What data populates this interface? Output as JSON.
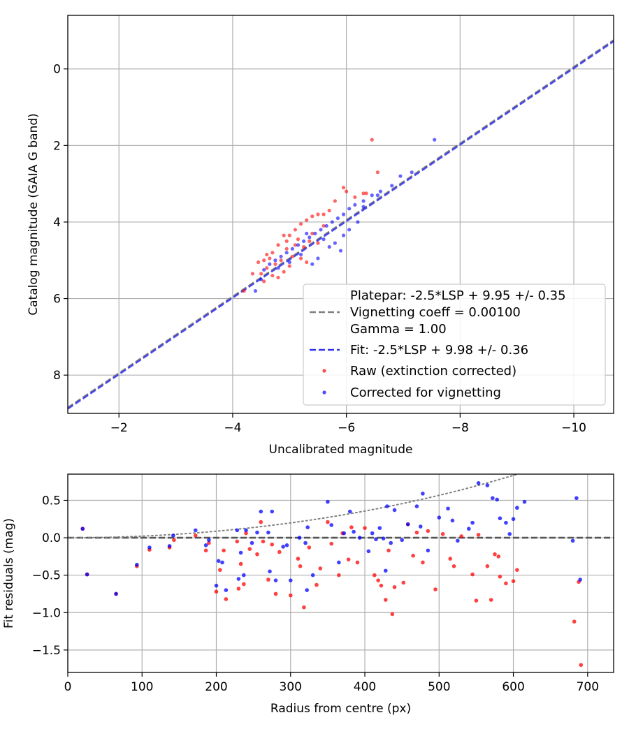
{
  "chart_data": [
    {
      "type": "scatter",
      "title": "",
      "xlabel": "Uncalibrated magnitude",
      "ylabel": "Catalog magnitude (GAIA G band)",
      "xlim": [
        -1.1,
        -10.7
      ],
      "ylim": [
        9.0,
        -1.4
      ],
      "x_inverted": true,
      "y_inverted": true,
      "grid": true,
      "xticks": [
        -2,
        -4,
        -6,
        -8,
        -10
      ],
      "xtick_labels": [
        "−2",
        "−4",
        "−6",
        "−8",
        "−10"
      ],
      "yticks": [
        0,
        2,
        4,
        6,
        8
      ],
      "ytick_labels": [
        "0",
        "2",
        "4",
        "6",
        "8"
      ],
      "legend_position": "lower-right",
      "legend": [
        {
          "label": "Platepar: -2.5*LSP + 9.95 +/- 0.35",
          "style": "none"
        },
        {
          "label": "Vignetting coeff = 0.00100",
          "style": "dash",
          "color": "#808080"
        },
        {
          "label": "Gamma = 1.00",
          "style": "none"
        },
        {
          "label": "Fit: -2.5*LSP + 9.98 +/- 0.36",
          "style": "dash",
          "color": "#3333ee"
        },
        {
          "label": "Raw (extinction corrected)",
          "style": "dot",
          "color": "#ff0000"
        },
        {
          "label": "Corrected for vignetting",
          "style": "dot",
          "color": "#0000ff"
        }
      ],
      "lines": [
        {
          "name": "Platepar",
          "color": "#808080",
          "style": "dash",
          "slope": 1.0,
          "intercept": 9.95
        },
        {
          "name": "Fit",
          "color": "#3333ee",
          "style": "dash",
          "slope": 1.0,
          "intercept": 9.98
        }
      ],
      "series": [
        {
          "name": "Raw (extinction corrected)",
          "color": "#ff0000",
          "points": [
            [
              -6.45,
              1.85
            ],
            [
              -6.55,
              2.7
            ],
            [
              -6.35,
              3.25
            ],
            [
              -6.3,
              3.25
            ],
            [
              -6.15,
              3.35
            ],
            [
              -5.95,
              3.1
            ],
            [
              -6.0,
              3.2
            ],
            [
              -5.8,
              3.45
            ],
            [
              -5.7,
              3.7
            ],
            [
              -5.6,
              3.8
            ],
            [
              -5.5,
              3.8
            ],
            [
              -5.4,
              3.85
            ],
            [
              -5.3,
              3.95
            ],
            [
              -5.2,
              4.05
            ],
            [
              -5.1,
              4.2
            ],
            [
              -5.0,
              4.35
            ],
            [
              -4.9,
              4.35
            ],
            [
              -5.15,
              4.45
            ],
            [
              -5.35,
              4.5
            ],
            [
              -5.5,
              4.55
            ],
            [
              -4.8,
              4.6
            ],
            [
              -4.95,
              4.7
            ],
            [
              -5.25,
              4.65
            ],
            [
              -4.7,
              4.8
            ],
            [
              -4.6,
              4.85
            ],
            [
              -5.05,
              4.9
            ],
            [
              -5.2,
              4.95
            ],
            [
              -4.85,
              5.0
            ],
            [
              -4.55,
              5.0
            ],
            [
              -4.45,
              5.05
            ],
            [
              -4.75,
              5.1
            ],
            [
              -5.0,
              5.15
            ],
            [
              -4.6,
              5.2
            ],
            [
              -4.9,
              5.3
            ],
            [
              -4.5,
              5.35
            ],
            [
              -4.7,
              5.4
            ],
            [
              -4.8,
              5.45
            ],
            [
              -4.35,
              5.35
            ],
            [
              -4.55,
              5.55
            ],
            [
              -4.2,
              5.8
            ],
            [
              -5.6,
              4.1
            ],
            [
              -5.4,
              4.3
            ],
            [
              -5.1,
              4.6
            ],
            [
              -4.95,
              4.5
            ],
            [
              -5.3,
              5.05
            ],
            [
              -4.65,
              4.95
            ]
          ]
        },
        {
          "name": "Corrected for vignetting",
          "color": "#0000ff",
          "points": [
            [
              -7.55,
              1.85
            ],
            [
              -7.15,
              2.7
            ],
            [
              -6.95,
              2.8
            ],
            [
              -6.8,
              3.05
            ],
            [
              -6.6,
              3.2
            ],
            [
              -6.45,
              3.3
            ],
            [
              -6.3,
              3.45
            ],
            [
              -6.15,
              3.55
            ],
            [
              -6.05,
              3.65
            ],
            [
              -5.95,
              3.8
            ],
            [
              -5.85,
              3.9
            ],
            [
              -5.75,
              4.0
            ],
            [
              -5.65,
              4.1
            ],
            [
              -5.55,
              4.2
            ],
            [
              -5.45,
              4.3
            ],
            [
              -5.35,
              4.4
            ],
            [
              -5.25,
              4.5
            ],
            [
              -5.15,
              4.6
            ],
            [
              -5.05,
              4.7
            ],
            [
              -4.95,
              4.8
            ],
            [
              -4.85,
              4.9
            ],
            [
              -4.75,
              5.0
            ],
            [
              -4.65,
              5.1
            ],
            [
              -4.55,
              5.25
            ],
            [
              -4.5,
              5.5
            ],
            [
              -4.4,
              5.8
            ],
            [
              -5.6,
              4.45
            ],
            [
              -5.8,
              4.55
            ],
            [
              -5.9,
              4.75
            ],
            [
              -5.5,
              4.95
            ],
            [
              -5.4,
              5.1
            ],
            [
              -5.2,
              4.85
            ],
            [
              -5.0,
              5.05
            ],
            [
              -4.8,
              5.2
            ],
            [
              -6.05,
              4.2
            ],
            [
              -6.2,
              4.0
            ],
            [
              -5.7,
              4.65
            ],
            [
              -5.3,
              4.3
            ],
            [
              -5.95,
              4.35
            ],
            [
              -6.3,
              3.6
            ],
            [
              -6.55,
              3.3
            ]
          ]
        }
      ]
    },
    {
      "type": "scatter",
      "title": "",
      "xlabel": "Radius from centre (px)",
      "ylabel": "Fit residuals (mag)",
      "xlim": [
        0,
        735
      ],
      "ylim": [
        -1.8,
        0.85
      ],
      "grid": true,
      "xticks": [
        0,
        100,
        200,
        300,
        400,
        500,
        600,
        700
      ],
      "xtick_labels": [
        "0",
        "100",
        "200",
        "300",
        "400",
        "500",
        "600",
        "700"
      ],
      "yticks": [
        0.5,
        0.0,
        -0.5,
        -1.0,
        -1.5
      ],
      "ytick_labels": [
        "0.5",
        "0.0",
        "−0.5",
        "−1.0",
        "−1.5"
      ],
      "lines": [
        {
          "name": "zero",
          "color": "#555555",
          "style": "dash",
          "x": [
            0,
            735
          ],
          "y": [
            0,
            0
          ]
        },
        {
          "name": "vignetting model",
          "color": "#808080",
          "style": "dot",
          "coeff": 0.001,
          "form": "-2.5*log10(cos^4(coeff*r))"
        }
      ],
      "series": [
        {
          "name": "Raw (extinction corrected)",
          "color": "#ff0000",
          "points": [
            [
              20,
              0.12
            ],
            [
              26,
              -0.49
            ],
            [
              65,
              -0.75
            ],
            [
              93,
              -0.38
            ],
            [
              110,
              -0.16
            ],
            [
              137,
              -0.13
            ],
            [
              143,
              -0.03
            ],
            [
              172,
              0.03
            ],
            [
              186,
              -0.17
            ],
            [
              190,
              -0.07
            ],
            [
              200,
              -0.72
            ],
            [
              205,
              -0.43
            ],
            [
              210,
              -0.17
            ],
            [
              213,
              -0.82
            ],
            [
              228,
              -0.05
            ],
            [
              230,
              -0.68
            ],
            [
              233,
              -0.35
            ],
            [
              237,
              -0.62
            ],
            [
              240,
              0.06
            ],
            [
              245,
              -0.15
            ],
            [
              255,
              -0.22
            ],
            [
              260,
              0.21
            ],
            [
              263,
              -0.05
            ],
            [
              270,
              -0.56
            ],
            [
              275,
              -0.09
            ],
            [
              280,
              -0.75
            ],
            [
              285,
              -0.19
            ],
            [
              300,
              -0.77
            ],
            [
              310,
              -0.28
            ],
            [
              313,
              -0.38
            ],
            [
              318,
              -0.93
            ],
            [
              325,
              -0.13
            ],
            [
              335,
              -0.63
            ],
            [
              340,
              -0.41
            ],
            [
              350,
              0.21
            ],
            [
              355,
              -0.08
            ],
            [
              365,
              -0.5
            ],
            [
              370,
              0.06
            ],
            [
              378,
              -0.29
            ],
            [
              382,
              0.14
            ],
            [
              390,
              -0.33
            ],
            [
              400,
              0.13
            ],
            [
              413,
              -0.5
            ],
            [
              418,
              -0.57
            ],
            [
              422,
              -0.64
            ],
            [
              428,
              -0.83
            ],
            [
              432,
              -0.17
            ],
            [
              437,
              -1.02
            ],
            [
              440,
              -0.66
            ],
            [
              452,
              -0.6
            ],
            [
              458,
              0.18
            ],
            [
              465,
              -0.24
            ],
            [
              470,
              0.07
            ],
            [
              478,
              -0.33
            ],
            [
              485,
              0.09
            ],
            [
              495,
              -0.69
            ],
            [
              505,
              0.05
            ],
            [
              515,
              -0.28
            ],
            [
              520,
              -0.38
            ],
            [
              530,
              0.02
            ],
            [
              545,
              -0.49
            ],
            [
              550,
              -0.84
            ],
            [
              553,
              0.04
            ],
            [
              565,
              -0.38
            ],
            [
              570,
              -0.83
            ],
            [
              575,
              -0.22
            ],
            [
              580,
              -0.25
            ],
            [
              582,
              -0.52
            ],
            [
              590,
              -0.61
            ],
            [
              600,
              -0.58
            ],
            [
              605,
              -0.43
            ],
            [
              682,
              -1.12
            ],
            [
              688,
              -0.59
            ],
            [
              691,
              -1.7
            ]
          ]
        },
        {
          "name": "Corrected for vignetting",
          "color": "#0000ff",
          "points": [
            [
              20,
              0.12
            ],
            [
              26,
              -0.49
            ],
            [
              65,
              -0.75
            ],
            [
              93,
              -0.36
            ],
            [
              110,
              -0.13
            ],
            [
              137,
              -0.11
            ],
            [
              142,
              0.03
            ],
            [
              172,
              0.1
            ],
            [
              186,
              -0.1
            ],
            [
              190,
              -0.03
            ],
            [
              200,
              -0.64
            ],
            [
              203,
              -0.31
            ],
            [
              208,
              -0.33
            ],
            [
              213,
              -0.7
            ],
            [
              228,
              0.1
            ],
            [
              230,
              -0.55
            ],
            [
              233,
              -0.2
            ],
            [
              237,
              -0.5
            ],
            [
              240,
              0.1
            ],
            [
              248,
              -0.07
            ],
            [
              255,
              0.07
            ],
            [
              260,
              0.35
            ],
            [
              270,
              0.07
            ],
            [
              272,
              -0.45
            ],
            [
              275,
              0.35
            ],
            [
              280,
              -0.57
            ],
            [
              290,
              -0.12
            ],
            [
              295,
              -0.1
            ],
            [
              300,
              -0.57
            ],
            [
              312,
              0.0
            ],
            [
              320,
              -0.07
            ],
            [
              322,
              -0.7
            ],
            [
              323,
              0.14
            ],
            [
              330,
              -0.5
            ],
            [
              350,
              0.48
            ],
            [
              355,
              0.17
            ],
            [
              365,
              -0.33
            ],
            [
              372,
              0.06
            ],
            [
              380,
              0.35
            ],
            [
              385,
              0.08
            ],
            [
              393,
              0.0
            ],
            [
              405,
              -0.18
            ],
            [
              410,
              0.06
            ],
            [
              415,
              -0.02
            ],
            [
              420,
              0.13
            ],
            [
              425,
              -0.01
            ],
            [
              428,
              -0.44
            ],
            [
              430,
              0.42
            ],
            [
              435,
              -0.07
            ],
            [
              440,
              0.37
            ],
            [
              450,
              -0.03
            ],
            [
              458,
              0.18
            ],
            [
              470,
              0.42
            ],
            [
              475,
              0.15
            ],
            [
              478,
              0.59
            ],
            [
              485,
              -0.17
            ],
            [
              500,
              0.27
            ],
            [
              512,
              0.39
            ],
            [
              518,
              0.23
            ],
            [
              525,
              -0.04
            ],
            [
              540,
              0.12
            ],
            [
              545,
              0.2
            ],
            [
              553,
              0.73
            ],
            [
              565,
              0.7
            ],
            [
              572,
              0.53
            ],
            [
              578,
              0.51
            ],
            [
              582,
              0.26
            ],
            [
              590,
              0.2
            ],
            [
              595,
              0.05
            ],
            [
              600,
              0.25
            ],
            [
              605,
              0.4
            ],
            [
              615,
              0.48
            ],
            [
              680,
              -0.04
            ],
            [
              685,
              0.53
            ],
            [
              690,
              -0.56
            ]
          ]
        }
      ]
    }
  ]
}
